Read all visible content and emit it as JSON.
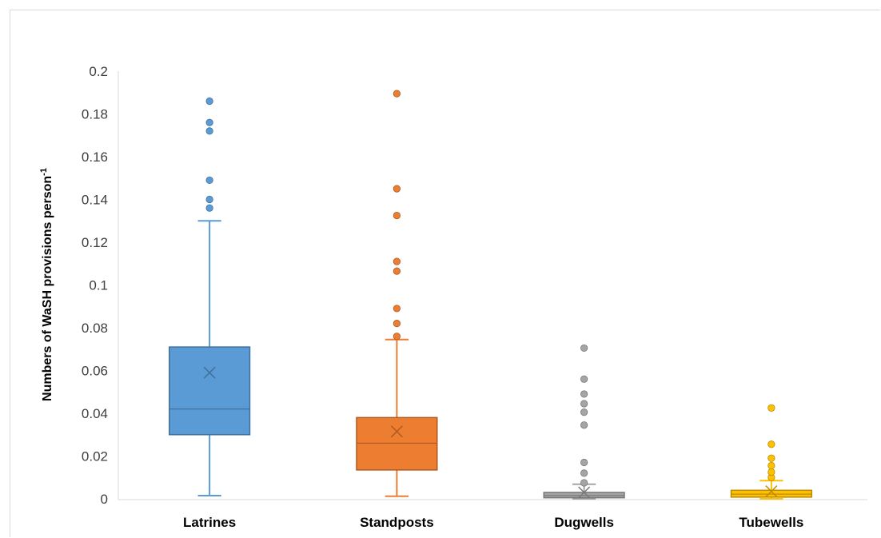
{
  "chart_data": {
    "type": "box",
    "title": "",
    "xlabel": "",
    "ylabel": "Numbers of WaSH provisions person",
    "ylabel_superscript": "-1",
    "ylim": [
      0,
      0.2
    ],
    "yticks": [
      "0",
      "0.02",
      "0.04",
      "0.06",
      "0.08",
      "0.1",
      "0.12",
      "0.14",
      "0.16",
      "0.18",
      "0.2"
    ],
    "grid": false,
    "legend": "none",
    "categories": [
      "Latrines",
      "Standposts",
      "Dugwells",
      "Tubewells"
    ],
    "series": [
      {
        "category": "Latrines",
        "color": "#5b9bd5",
        "stroke": "#41719c",
        "whisker_low": 0.0015,
        "q1": 0.03,
        "median": 0.042,
        "q3": 0.071,
        "whisker_high": 0.13,
        "mean": 0.059,
        "outliers": [
          0.136,
          0.14,
          0.149,
          0.172,
          0.176,
          0.186
        ]
      },
      {
        "category": "Standposts",
        "color": "#ed7d31",
        "stroke": "#ae5a21",
        "whisker_low": 0.0012,
        "q1": 0.0135,
        "median": 0.026,
        "q3": 0.038,
        "whisker_high": 0.0745,
        "mean": 0.0315,
        "outliers": [
          0.076,
          0.082,
          0.089,
          0.1065,
          0.111,
          0.1325,
          0.145,
          0.1895
        ]
      },
      {
        "category": "Dugwells",
        "color": "#a5a5a5",
        "stroke": "#787878",
        "whisker_low": 0.0,
        "q1": 0.0005,
        "median": 0.0015,
        "q3": 0.003,
        "whisker_high": 0.0068,
        "mean": 0.003,
        "outliers": [
          0.0075,
          0.012,
          0.017,
          0.0345,
          0.0405,
          0.0445,
          0.049,
          0.056,
          0.0705
        ]
      },
      {
        "category": "Tubewells",
        "color": "#ffc000",
        "stroke": "#bc8c00",
        "whisker_low": 0.0,
        "q1": 0.0008,
        "median": 0.0022,
        "q3": 0.004,
        "whisker_high": 0.0085,
        "mean": 0.0035,
        "outliers": [
          0.01,
          0.0125,
          0.0155,
          0.019,
          0.0255,
          0.0425
        ]
      }
    ]
  }
}
